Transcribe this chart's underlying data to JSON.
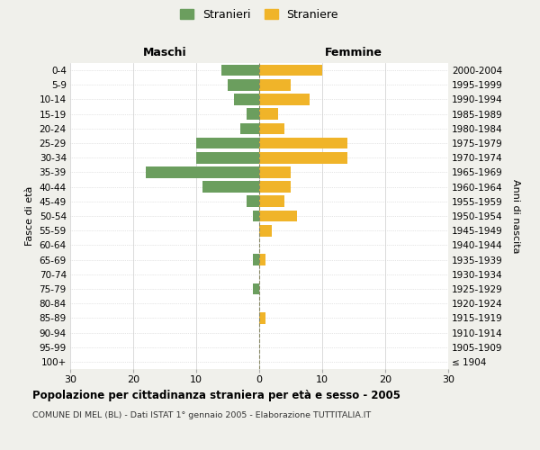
{
  "age_groups": [
    "100+",
    "95-99",
    "90-94",
    "85-89",
    "80-84",
    "75-79",
    "70-74",
    "65-69",
    "60-64",
    "55-59",
    "50-54",
    "45-49",
    "40-44",
    "35-39",
    "30-34",
    "25-29",
    "20-24",
    "15-19",
    "10-14",
    "5-9",
    "0-4"
  ],
  "birth_years": [
    "≤ 1904",
    "1905-1909",
    "1910-1914",
    "1915-1919",
    "1920-1924",
    "1925-1929",
    "1930-1934",
    "1935-1939",
    "1940-1944",
    "1945-1949",
    "1950-1954",
    "1955-1959",
    "1960-1964",
    "1965-1969",
    "1970-1974",
    "1975-1979",
    "1980-1984",
    "1985-1989",
    "1990-1994",
    "1995-1999",
    "2000-2004"
  ],
  "males": [
    0,
    0,
    0,
    0,
    0,
    1,
    0,
    1,
    0,
    0,
    1,
    2,
    9,
    18,
    10,
    10,
    3,
    2,
    4,
    5,
    6
  ],
  "females": [
    0,
    0,
    0,
    1,
    0,
    0,
    0,
    1,
    0,
    2,
    6,
    4,
    5,
    5,
    14,
    14,
    4,
    3,
    8,
    5,
    10
  ],
  "male_color": "#6b9e5e",
  "female_color": "#f0b429",
  "background_color": "#f0f0eb",
  "plot_background": "#ffffff",
  "grid_color": "#cccccc",
  "dashed_line_color": "#888866",
  "xlim": 30,
  "title": "Popolazione per cittadinanza straniera per età e sesso - 2005",
  "subtitle": "COMUNE DI MEL (BL) - Dati ISTAT 1° gennaio 2005 - Elaborazione TUTTITALIA.IT",
  "xlabel_left": "Maschi",
  "xlabel_right": "Femmine",
  "ylabel_left": "Fasce di età",
  "ylabel_right": "Anni di nascita",
  "legend_stranieri": "Stranieri",
  "legend_straniere": "Straniere"
}
